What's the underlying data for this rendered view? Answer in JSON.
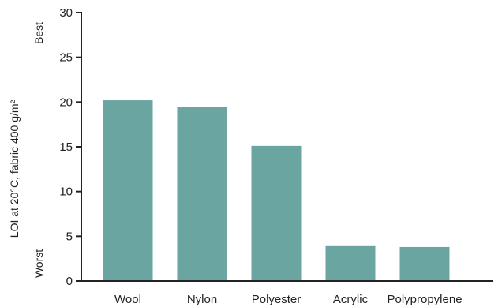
{
  "chart_data": {
    "type": "bar",
    "title": "",
    "xlabel": "",
    "ylabel": "LOI at 20°C, fabric 400 g/m²",
    "ylabel_best": "Best",
    "ylabel_worst": "Worst",
    "ylim": [
      0,
      30
    ],
    "yticks": [
      0,
      5,
      10,
      15,
      20,
      25,
      30
    ],
    "grid": false,
    "categories": [
      "Wool",
      "Nylon",
      "Polyester",
      "Acrylic",
      "Polypropylene"
    ],
    "values": [
      20.2,
      19.5,
      15.1,
      3.9,
      3.8
    ],
    "bar_color": "#6aa5a2",
    "axis_color": "#222222"
  }
}
